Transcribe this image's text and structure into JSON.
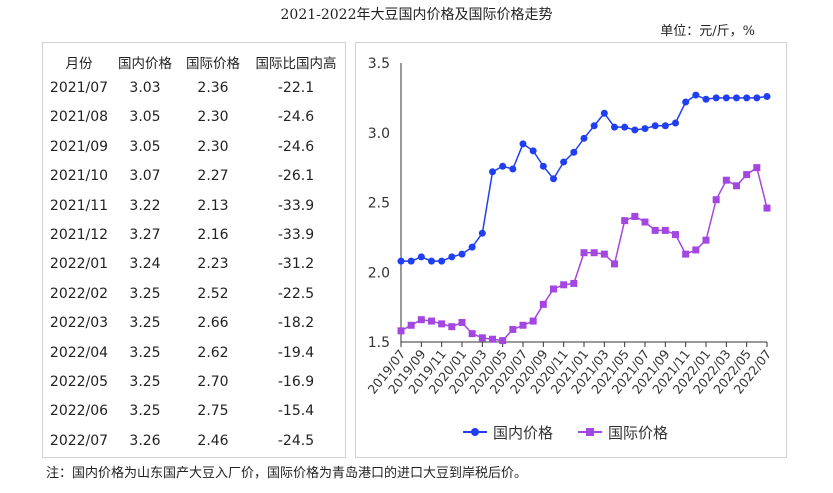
{
  "title": "2021-2022年大豆国内价格及国际价格走势",
  "unit": "单位：元/斤，%",
  "table": {
    "headers": [
      "月份",
      "国内价格",
      "国际价格",
      "国际比国内高"
    ],
    "rows": [
      [
        "2021/07",
        "3.03",
        "2.36",
        "-22.1"
      ],
      [
        "2021/08",
        "3.05",
        "2.30",
        "-24.6"
      ],
      [
        "2021/09",
        "3.05",
        "2.30",
        "-24.6"
      ],
      [
        "2021/10",
        "3.07",
        "2.27",
        "-26.1"
      ],
      [
        "2021/11",
        "3.22",
        "2.13",
        "-33.9"
      ],
      [
        "2021/12",
        "3.27",
        "2.16",
        "-33.9"
      ],
      [
        "2022/01",
        "3.24",
        "2.23",
        "-31.2"
      ],
      [
        "2022/02",
        "3.25",
        "2.52",
        "-22.5"
      ],
      [
        "2022/03",
        "3.25",
        "2.66",
        "-18.2"
      ],
      [
        "2022/04",
        "3.25",
        "2.62",
        "-19.4"
      ],
      [
        "2022/05",
        "3.25",
        "2.70",
        "-16.9"
      ],
      [
        "2022/06",
        "3.25",
        "2.75",
        "-15.4"
      ],
      [
        "2022/07",
        "3.26",
        "2.46",
        "-24.5"
      ]
    ]
  },
  "chart_data": {
    "type": "line",
    "x": [
      "2019/07",
      "2019/08",
      "2019/09",
      "2019/10",
      "2019/11",
      "2019/12",
      "2020/01",
      "2020/02",
      "2020/03",
      "2020/04",
      "2020/05",
      "2020/06",
      "2020/07",
      "2020/08",
      "2020/09",
      "2020/10",
      "2020/11",
      "2020/12",
      "2021/01",
      "2021/02",
      "2021/03",
      "2021/04",
      "2021/05",
      "2021/06",
      "2021/07",
      "2021/08",
      "2021/09",
      "2021/10",
      "2021/11",
      "2021/12",
      "2022/01",
      "2022/02",
      "2022/03",
      "2022/04",
      "2022/05",
      "2022/06",
      "2022/07"
    ],
    "xticklabels": [
      "2019/07",
      "2019/09",
      "2019/11",
      "2020/01",
      "2020/03",
      "2020/05",
      "2020/07",
      "2020/09",
      "2020/11",
      "2021/01",
      "2021/03",
      "2021/05",
      "2021/07",
      "2021/09",
      "2021/11",
      "2022/01",
      "2022/03",
      "2022/05",
      "2022/07"
    ],
    "ylim": [
      1.5,
      3.5
    ],
    "yticks": [
      "1.5",
      "2.0",
      "2.5",
      "3.0",
      "3.5"
    ],
    "grid": false,
    "legend_position": "bottom",
    "series": [
      {
        "name": "国内价格",
        "color": "#1f3ff0",
        "marker": "circle",
        "values": [
          2.08,
          2.08,
          2.11,
          2.08,
          2.08,
          2.11,
          2.13,
          2.18,
          2.28,
          2.72,
          2.76,
          2.74,
          2.92,
          2.87,
          2.76,
          2.67,
          2.79,
          2.86,
          2.96,
          3.05,
          3.14,
          3.04,
          3.04,
          3.02,
          3.03,
          3.05,
          3.05,
          3.07,
          3.22,
          3.27,
          3.24,
          3.25,
          3.25,
          3.25,
          3.25,
          3.25,
          3.26
        ]
      },
      {
        "name": "国际价格",
        "color": "#a347e0",
        "marker": "square",
        "values": [
          1.58,
          1.62,
          1.66,
          1.65,
          1.63,
          1.61,
          1.64,
          1.56,
          1.53,
          1.52,
          1.51,
          1.59,
          1.62,
          1.65,
          1.77,
          1.88,
          1.91,
          1.92,
          2.14,
          2.14,
          2.13,
          2.06,
          2.37,
          2.4,
          2.36,
          2.3,
          2.3,
          2.27,
          2.13,
          2.16,
          2.23,
          2.52,
          2.66,
          2.62,
          2.7,
          2.75,
          2.46
        ]
      }
    ]
  },
  "note": "注：国内价格为山东国产大豆入厂价，国际价格为青岛港口的进口大豆到岸税后价。"
}
